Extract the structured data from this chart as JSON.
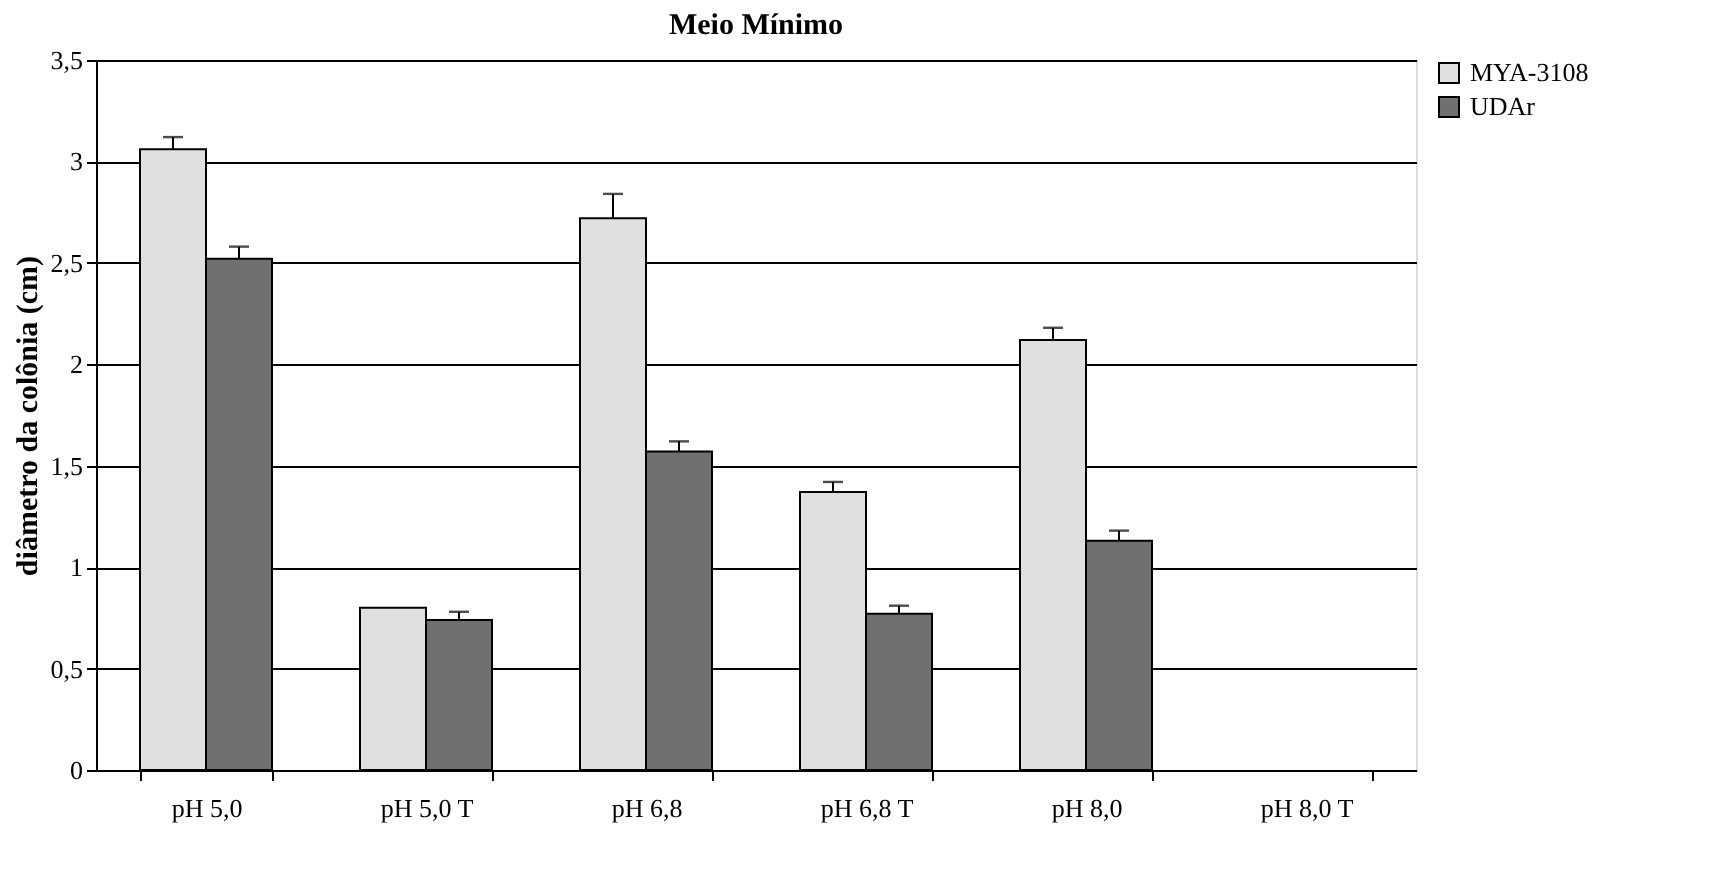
{
  "chart_data": {
    "type": "bar",
    "title": "Meio Mínimo",
    "ylabel": "diâmetro da colônia (cm)",
    "categories": [
      "pH 5,0",
      "pH 5,0 T",
      "pH 6,8",
      "pH 6,8 T",
      "pH 8,0",
      "pH 8,0 T"
    ],
    "series": [
      {
        "name": "MYA-3108",
        "color": "#e0e0e0",
        "values": [
          3.06,
          0.8,
          2.72,
          1.37,
          2.12,
          0
        ],
        "errors": [
          [
            3.06,
            3.12
          ],
          null,
          [
            2.72,
            2.84
          ],
          [
            1.37,
            1.42
          ],
          [
            2.12,
            2.18
          ],
          null
        ]
      },
      {
        "name": "UDAr",
        "color": "#707070",
        "values": [
          2.52,
          0.74,
          1.57,
          0.77,
          1.13,
          0
        ],
        "errors": [
          [
            2.52,
            2.58
          ],
          [
            0.74,
            0.78
          ],
          [
            1.57,
            1.62
          ],
          [
            0.77,
            0.81
          ],
          [
            1.13,
            1.18
          ],
          null
        ]
      }
    ],
    "ylim": [
      0,
      3.5
    ],
    "yticks": [
      0,
      {
        "value": 0.5,
        "label": "0,5"
      },
      1,
      {
        "value": 1.5,
        "label": "1,5"
      },
      2,
      {
        "value": 2.5,
        "label": "2,5"
      },
      3,
      {
        "value": 3.5,
        "label": "3,5"
      }
    ],
    "grid": "y",
    "legend": "right"
  }
}
